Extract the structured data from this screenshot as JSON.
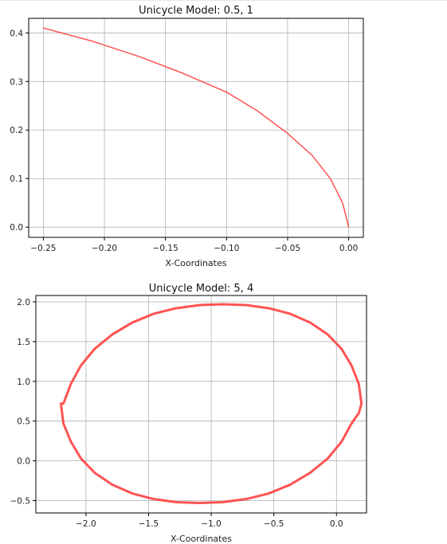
{
  "chart_data": [
    {
      "type": "line",
      "title": "Unicycle Model: 0.5, 1",
      "xlabel": "X-Coordinates",
      "ylabel": "",
      "xlim": [
        -0.262,
        0.012
      ],
      "ylim": [
        -0.021,
        0.43
      ],
      "xticks": [
        -0.25,
        -0.2,
        -0.15,
        -0.1,
        -0.05,
        0.0
      ],
      "xtick_labels": [
        "−0.25",
        "−0.20",
        "−0.15",
        "−0.10",
        "−0.05",
        "0.00"
      ],
      "yticks": [
        0.0,
        0.1,
        0.2,
        0.3,
        0.4
      ],
      "ytick_labels": [
        "0.0",
        "0.1",
        "0.2",
        "0.3",
        "0.4"
      ],
      "grid": true,
      "legend": "none",
      "color": "#ff4040",
      "series": [
        {
          "x": [
            -0.25,
            -0.21,
            -0.17,
            -0.135,
            -0.1,
            -0.075,
            -0.05,
            -0.03,
            -0.015,
            -0.005,
            0.0
          ],
          "y": [
            0.41,
            0.383,
            0.35,
            0.316,
            0.278,
            0.24,
            0.193,
            0.148,
            0.1,
            0.05,
            0.0
          ]
        }
      ]
    },
    {
      "type": "line",
      "title": "Unicycle Model: 5, 4",
      "xlabel": "X-Coordinates",
      "ylabel": "",
      "xlim": [
        -2.4,
        0.24
      ],
      "ylim": [
        -0.655,
        2.08
      ],
      "xticks": [
        -2.0,
        -1.5,
        -1.0,
        -0.5,
        0.0
      ],
      "xtick_labels": [
        "−2.0",
        "−1.5",
        "−1.0",
        "−0.5",
        "0.0"
      ],
      "yticks": [
        -0.5,
        0.0,
        0.5,
        1.0,
        1.5,
        2.0
      ],
      "ytick_labels": [
        "−0.5",
        "0.0",
        "0.5",
        "1.0",
        "1.5",
        "2.0"
      ],
      "grid": true,
      "legend": "none",
      "color": "#ff4040",
      "series": [
        {
          "x": [
            0.2,
            0.178,
            0.12,
            0.04,
            -0.07,
            -0.21,
            -0.37,
            -0.54,
            -0.72,
            -0.91,
            -1.09,
            -1.28,
            -1.46,
            -1.63,
            -1.79,
            -1.93,
            -2.04,
            -2.12,
            -2.18,
            -2.2,
            -2.18,
            -2.12,
            -2.04,
            -1.93,
            -1.79,
            -1.63,
            -1.46,
            -1.28,
            -1.09,
            -0.91,
            -0.72,
            -0.54,
            -0.37,
            -0.21,
            -0.07,
            0.04,
            0.12,
            0.178,
            0.2
          ],
          "y": [
            0.72,
            0.97,
            1.2,
            1.41,
            1.59,
            1.74,
            1.85,
            1.92,
            1.96,
            1.97,
            1.96,
            1.92,
            1.85,
            1.74,
            1.59,
            1.41,
            1.2,
            0.97,
            0.72,
            0.72,
            0.47,
            0.24,
            0.03,
            -0.15,
            -0.3,
            -0.41,
            -0.48,
            -0.52,
            -0.53,
            -0.52,
            -0.48,
            -0.41,
            -0.3,
            -0.15,
            0.03,
            0.24,
            0.47,
            0.6,
            0.72
          ]
        }
      ]
    }
  ]
}
